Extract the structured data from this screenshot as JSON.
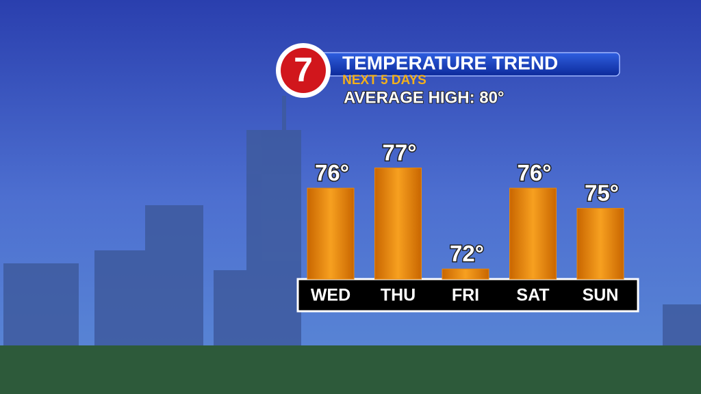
{
  "chart_data": {
    "type": "bar",
    "logo": "7",
    "title": "TEMPERATURE TREND",
    "subtitle": "NEXT 5 DAYS",
    "annotation": "AVERAGE HIGH:  80°",
    "categories": [
      "WED",
      "THU",
      "FRI",
      "SAT",
      "SUN"
    ],
    "values": [
      76,
      77,
      72,
      76,
      75
    ],
    "value_labels": [
      "76°",
      "77°",
      "72°",
      "76°",
      "75°"
    ],
    "color": "#e8870a",
    "ylim": [
      71.5,
      78
    ]
  }
}
